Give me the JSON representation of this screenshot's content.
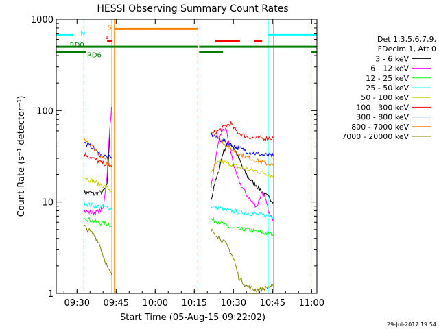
{
  "chart_data": {
    "type": "line",
    "title": "HESSI Observing Summary Count Rates",
    "xlabel": "Start Time (05-Aug-15 09:22:02)",
    "ylabel": "Count Rate (s⁻¹ detector⁻¹)",
    "x_unit": "minutes after 09:22:02",
    "y_scale": "log",
    "ylim": [
      1,
      1000
    ],
    "xlim": [
      0,
      100
    ],
    "x_ticks": [
      {
        "x": 7.97,
        "label": "09:30"
      },
      {
        "x": 22.97,
        "label": "09:45"
      },
      {
        "x": 37.97,
        "label": "10:00"
      },
      {
        "x": 52.97,
        "label": "10:15"
      },
      {
        "x": 67.97,
        "label": "10:30"
      },
      {
        "x": 82.97,
        "label": "10:45"
      },
      {
        "x": 97.97,
        "label": "11:00"
      }
    ],
    "y_ticks": [
      {
        "y": 1,
        "label": "1"
      },
      {
        "y": 10,
        "label": "10"
      },
      {
        "y": 100,
        "label": "100"
      },
      {
        "y": 1000,
        "label": "1000"
      }
    ],
    "legend": {
      "header": [
        "Det 1,3,5,6,7,9,",
        "FDecim 1, Att 0"
      ],
      "placement": "right"
    },
    "series": [
      {
        "name": "3 - 6 keV",
        "color": "#000000",
        "segments": [
          {
            "x": [
              10.6,
              11.5,
              13,
              14.5,
              16,
              18,
              19.5,
              20.6
            ],
            "y": [
              13,
              12.5,
              12.8,
              12.2,
              12.5,
              13,
              15,
              60
            ]
          },
          {
            "x": [
              59.3,
              60.5,
              62,
              64,
              66,
              68,
              70,
              72,
              74,
              76,
              78,
              80,
              82,
              83.3
            ],
            "y": [
              10,
              15,
              20,
              35,
              45,
              40,
              30,
              22,
              18,
              16,
              14,
              12,
              11,
              10
            ]
          }
        ]
      },
      {
        "name": "6 - 12 keV",
        "color": "#ff00ff",
        "segments": [
          {
            "x": [
              10.6,
              12,
              14,
              16,
              18,
              19.5,
              20.5,
              21.2
            ],
            "y": [
              8,
              7.8,
              7.6,
              7.8,
              8.5,
              20,
              60,
              110
            ]
          },
          {
            "x": [
              59.3,
              61,
              63,
              65,
              67,
              69,
              71,
              73,
              75,
              77,
              79,
              80.5,
              82,
              83.3
            ],
            "y": [
              14,
              28,
              55,
              65,
              35,
              20,
              15,
              12,
              10,
              9,
              13,
              10,
              7,
              6.5
            ]
          }
        ]
      },
      {
        "name": "12 - 25 keV",
        "color": "#00ff00",
        "segments": [
          {
            "x": [
              10.6,
              12,
              14,
              16,
              18,
              20,
              21.3
            ],
            "y": [
              7,
              6.5,
              6.2,
              6,
              5.8,
              5.8,
              5.5
            ]
          },
          {
            "x": [
              59.3,
              61,
              63,
              65,
              67,
              70,
              73,
              76,
              79,
              82,
              83.3
            ],
            "y": [
              6.5,
              6.2,
              6,
              5.5,
              5.2,
              5,
              5,
              4.8,
              4.6,
              4.5,
              4.4
            ]
          }
        ]
      },
      {
        "name": "25 - 50 keV",
        "color": "#00ffff",
        "segments": [
          {
            "x": [
              10.6,
              12,
              14,
              16,
              18,
              20,
              21.3
            ],
            "y": [
              10,
              9.5,
              9.2,
              9,
              8.8,
              8.7,
              8.6
            ]
          },
          {
            "x": [
              59.3,
              61,
              63,
              65,
              67,
              70,
              73,
              76,
              79,
              82,
              83.3
            ],
            "y": [
              9,
              8.8,
              8.5,
              8.2,
              8,
              7.8,
              7.6,
              7.4,
              7.2,
              7,
              7
            ]
          }
        ]
      },
      {
        "name": "50 - 100 keV",
        "color": "#cccc00",
        "segments": [
          {
            "x": [
              10.6,
              12,
              14,
              16,
              18,
              20,
              21.3
            ],
            "y": [
              19,
              18,
              17,
              16,
              15,
              14,
              13
            ]
          },
          {
            "x": [
              59.3,
              61,
              63,
              65,
              67,
              70,
              73,
              76,
              79,
              82,
              83.3
            ],
            "y": [
              20,
              25,
              28,
              27,
              26,
              24,
              23,
              22,
              21,
              20,
              19
            ]
          }
        ]
      },
      {
        "name": "100 - 300 keV",
        "color": "#ff0000",
        "segments": [
          {
            "x": [
              10.6,
              12,
              14,
              16,
              17.5,
              19,
              20.5,
              21.3
            ],
            "y": [
              34,
              32,
              30,
              28,
              27,
              26,
              25,
              24
            ]
          },
          {
            "x": [
              59.3,
              61,
              63,
              65,
              67,
              68,
              69,
              71,
              73,
              76,
              79,
              82,
              83.3
            ],
            "y": [
              55,
              58,
              62,
              68,
              72,
              65,
              60,
              55,
              52,
              50,
              50,
              50,
              50
            ]
          }
        ]
      },
      {
        "name": "300 - 800 keV",
        "color": "#0000ff",
        "segments": [
          {
            "x": [
              10.6,
              12,
              14,
              15.5,
              16.5,
              18,
              20,
              21.3
            ],
            "y": [
              45,
              42,
              40,
              35,
              33,
              32,
              31,
              30
            ]
          },
          {
            "x": [
              59.3,
              61,
              63,
              65,
              67,
              69,
              71,
              73,
              76,
              79,
              82,
              83.3
            ],
            "y": [
              55,
              52,
              48,
              45,
              42,
              40,
              38,
              36,
              34,
              33,
              32,
              32
            ]
          }
        ]
      },
      {
        "name": "800 - 7000 keV",
        "color": "#ff8000",
        "segments": [
          {
            "x": [
              10.6,
              12,
              14,
              16,
              18,
              20,
              21.3
            ],
            "y": [
              48,
              44,
              40,
              35,
              30,
              26,
              25
            ]
          },
          {
            "x": [
              59.3,
              61,
              63,
              65,
              67,
              70,
              73,
              76,
              79,
              82,
              83.3
            ],
            "y": [
              60,
              55,
              48,
              42,
              38,
              34,
              31,
              29,
              27,
              26,
              25
            ]
          }
        ]
      },
      {
        "name": "7000 - 20000 keV",
        "color": "#808000",
        "segments": [
          {
            "x": [
              10.6,
              12,
              14,
              16,
              17,
              18,
              19,
              20,
              21.3
            ],
            "y": [
              5.5,
              5,
              4.5,
              3.8,
              3.2,
              2.6,
              2.2,
              1.8,
              1.6
            ]
          },
          {
            "x": [
              59.3,
              61,
              63,
              65,
              67,
              68.5,
              70,
              73,
              76,
              79,
              82,
              83.3
            ],
            "y": [
              5,
              4.5,
              4,
              3.5,
              2.8,
              2.2,
              1.5,
              1.2,
              1.1,
              1.1,
              1.2,
              1.2
            ]
          }
        ]
      }
    ],
    "flag_bars": [
      {
        "label": "S",
        "color": "#ff8000",
        "level": 780,
        "ranges": [
          [
            22.3,
            54.3
          ]
        ]
      },
      {
        "label": "F",
        "color": "#ff0000",
        "level": 580,
        "ranges": [
          [
            19.5,
            21.5
          ],
          [
            61,
            70.5
          ],
          [
            76,
            79
          ]
        ]
      },
      {
        "label": "N",
        "color": "#00ffff",
        "level": 680,
        "ranges": [
          [
            0,
            6.5
          ],
          [
            81,
            100
          ]
        ]
      },
      {
        "label": "RD0",
        "color": "#008000",
        "level": 500,
        "ranges": [
          [
            0,
            54.3
          ],
          [
            54.8,
            100
          ]
        ]
      },
      {
        "label": "RD6",
        "color": "#008000",
        "level": 440,
        "ranges": [
          [
            0,
            11.5
          ],
          [
            54.8,
            64
          ],
          [
            97.8,
            100
          ]
        ]
      }
    ],
    "vlines": [
      {
        "x": 0,
        "color": "#00ffff",
        "style": "solid"
      },
      {
        "x": 10.6,
        "color": "#00ffff",
        "style": "dashed"
      },
      {
        "x": 21.3,
        "color": "#00ffff",
        "style": "solid"
      },
      {
        "x": 22.3,
        "color": "#ff8000",
        "style": "solid"
      },
      {
        "x": 54.3,
        "color": "#ff8000",
        "style": "dashed"
      },
      {
        "x": 81.3,
        "color": "#00ffff",
        "style": "solid"
      },
      {
        "x": 83.3,
        "color": "#00ffff",
        "style": "solid"
      },
      {
        "x": 97.8,
        "color": "#00ffff",
        "style": "dashed"
      }
    ]
  },
  "footer": {
    "timestamp": "29-Jul-2017 19:54"
  }
}
